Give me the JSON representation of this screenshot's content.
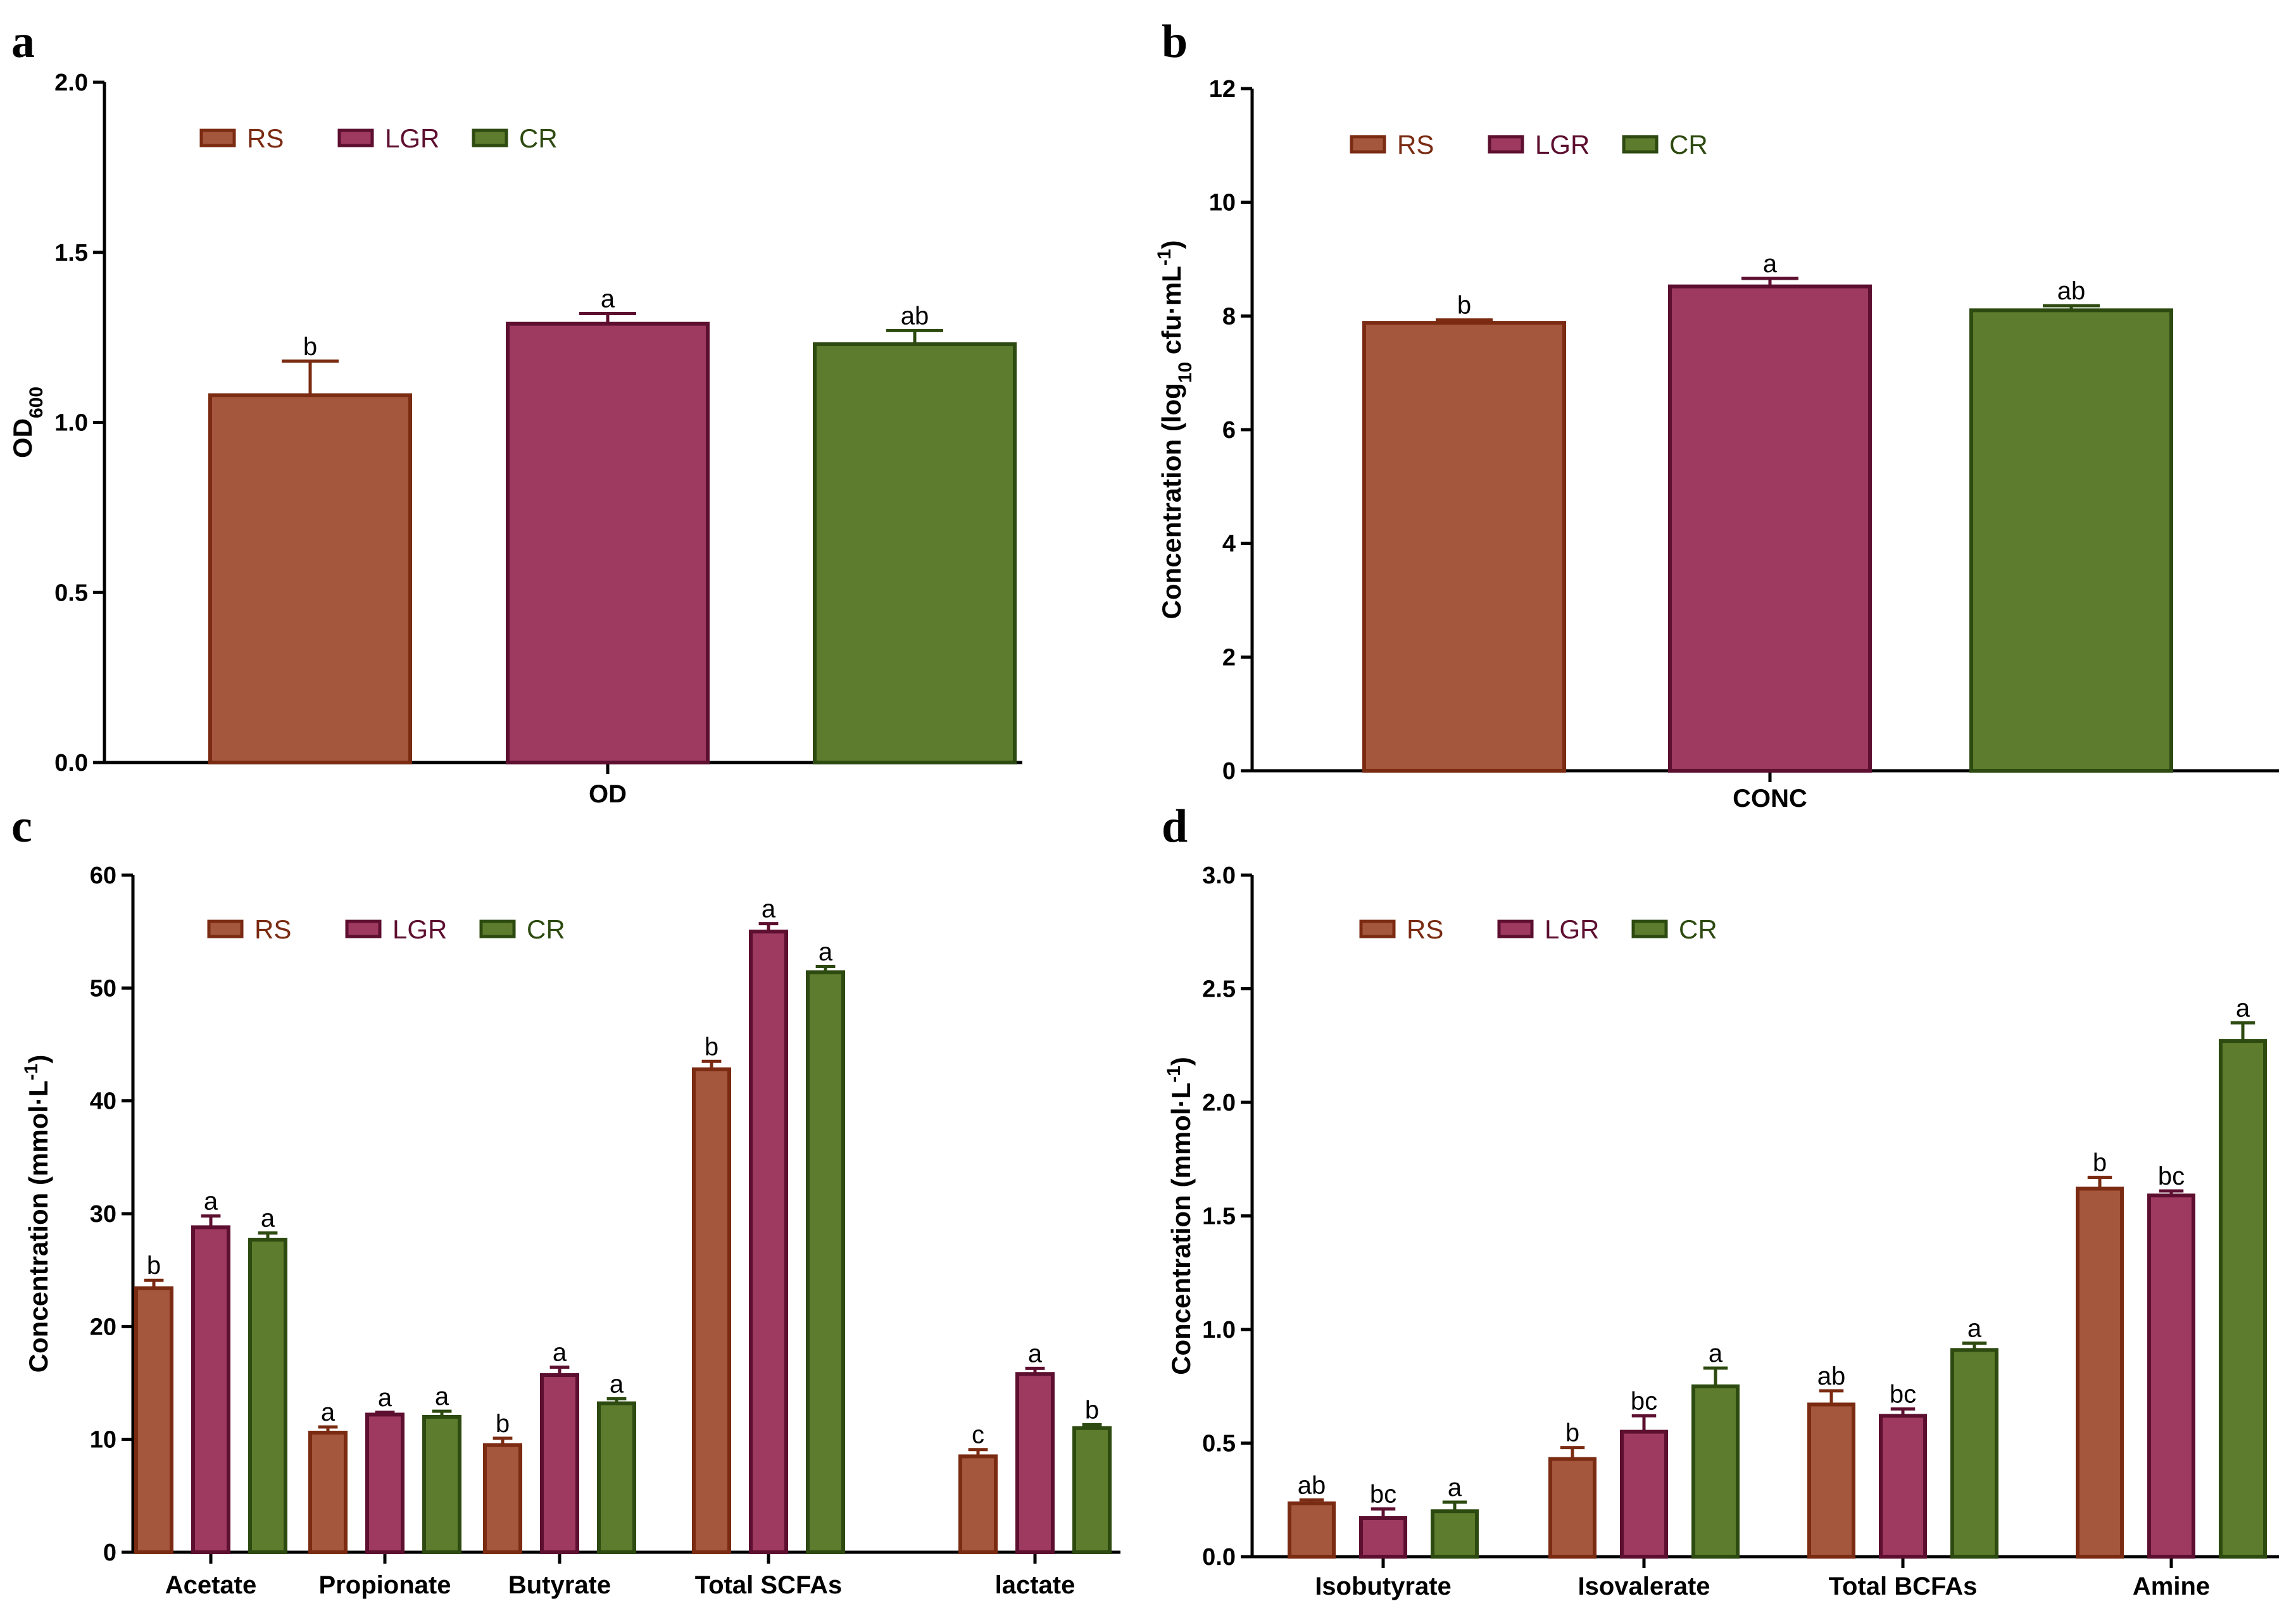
{
  "colors": {
    "series": [
      {
        "fill": "#a5573d",
        "stroke": "#7a2b12"
      },
      {
        "fill": "#9e395f",
        "stroke": "#5d0f30"
      },
      {
        "fill": "#5e7c2d",
        "stroke": "#2d4a10"
      }
    ],
    "legend_text": [
      "#7a2b12",
      "#5d0f30",
      "#2d4a10"
    ]
  },
  "panels": [
    {
      "letter": "a",
      "chart_data": {
        "type": "bar",
        "categories": [
          "OD"
        ],
        "series": [
          {
            "name": "RS",
            "values": [
              1.08
            ],
            "errors": [
              0.1
            ],
            "sig": [
              "b"
            ]
          },
          {
            "name": "LGR",
            "values": [
              1.29
            ],
            "errors": [
              0.03
            ],
            "sig": [
              "a"
            ]
          },
          {
            "name": "CR",
            "values": [
              1.23
            ],
            "errors": [
              0.04
            ],
            "sig": [
              "ab"
            ]
          }
        ],
        "ylabel": "OD",
        "ylabel_sub": "600",
        "ylim": [
          0,
          2.0
        ],
        "yticks": [
          "0.0",
          "0.5",
          "1.0",
          "1.5",
          "2.0"
        ],
        "legend": "top-left"
      }
    },
    {
      "letter": "b",
      "chart_data": {
        "type": "bar",
        "categories": [
          "CONC"
        ],
        "series": [
          {
            "name": "RS",
            "values": [
              7.88
            ],
            "errors": [
              0.05
            ],
            "sig": [
              "b"
            ]
          },
          {
            "name": "LGR",
            "values": [
              8.52
            ],
            "errors": [
              0.14
            ],
            "sig": [
              "a"
            ]
          },
          {
            "name": "CR",
            "values": [
              8.1
            ],
            "errors": [
              0.08
            ],
            "sig": [
              "ab"
            ]
          }
        ],
        "ylabel_parts": [
          "Concentration (log",
          "10",
          " cfu·mL",
          "-1",
          ")"
        ],
        "ylim": [
          0,
          12
        ],
        "yticks": [
          "0",
          "2",
          "4",
          "6",
          "8",
          "10",
          "12"
        ],
        "legend": "top-left"
      }
    },
    {
      "letter": "c",
      "chart_data": {
        "type": "bar",
        "categories": [
          "Acetate",
          "Propionate",
          "Butyrate",
          "Total SCFAs",
          "lactate"
        ],
        "series": [
          {
            "name": "RS",
            "values": [
              23.4,
              10.6,
              9.5,
              42.8,
              8.5
            ],
            "errors": [
              0.7,
              0.5,
              0.6,
              0.7,
              0.6
            ],
            "sig": [
              "b",
              "a",
              "b",
              "b",
              "c"
            ]
          },
          {
            "name": "LGR",
            "values": [
              28.8,
              12.2,
              15.7,
              55.0,
              15.8
            ],
            "errors": [
              1.0,
              0.2,
              0.7,
              0.7,
              0.5
            ],
            "sig": [
              "a",
              "a",
              "a",
              "a",
              "a"
            ]
          },
          {
            "name": "CR",
            "values": [
              27.7,
              12.0,
              13.2,
              51.4,
              11.0
            ],
            "errors": [
              0.6,
              0.5,
              0.4,
              0.5,
              0.3
            ],
            "sig": [
              "a",
              "a",
              "a",
              "a",
              "b"
            ]
          }
        ],
        "ylabel_parts": [
          "Concentration (mmol·L",
          "-1",
          ")"
        ],
        "ylim": [
          0,
          60
        ],
        "yticks": [
          "0",
          "10",
          "20",
          "30",
          "40",
          "50",
          "60"
        ],
        "legend": "top-left"
      }
    },
    {
      "letter": "d",
      "chart_data": {
        "type": "bar",
        "categories": [
          "Isobutyrate",
          "Isovalerate",
          "Total BCFAs",
          "Amine"
        ],
        "series": [
          {
            "name": "RS",
            "values": [
              0.235,
              0.43,
              0.67,
              1.62
            ],
            "errors": [
              0.015,
              0.05,
              0.06,
              0.05
            ],
            "sig": [
              "ab",
              "b",
              "ab",
              "b"
            ]
          },
          {
            "name": "LGR",
            "values": [
              0.17,
              0.55,
              0.62,
              1.59
            ],
            "errors": [
              0.04,
              0.07,
              0.03,
              0.02
            ],
            "sig": [
              "bc",
              "bc",
              "bc",
              "bc"
            ]
          },
          {
            "name": "CR",
            "values": [
              0.2,
              0.75,
              0.91,
              2.27
            ],
            "errors": [
              0.04,
              0.08,
              0.03,
              0.08
            ],
            "sig": [
              "a",
              "a",
              "a",
              "a"
            ]
          }
        ],
        "ylabel_parts": [
          "Concentration (mmol·L",
          "-1",
          ")"
        ],
        "ylim": [
          0,
          3.0
        ],
        "yticks": [
          "0.0",
          "0.5",
          "1.0",
          "1.5",
          "2.0",
          "2.5",
          "3.0"
        ],
        "legend": "top-left"
      }
    }
  ]
}
